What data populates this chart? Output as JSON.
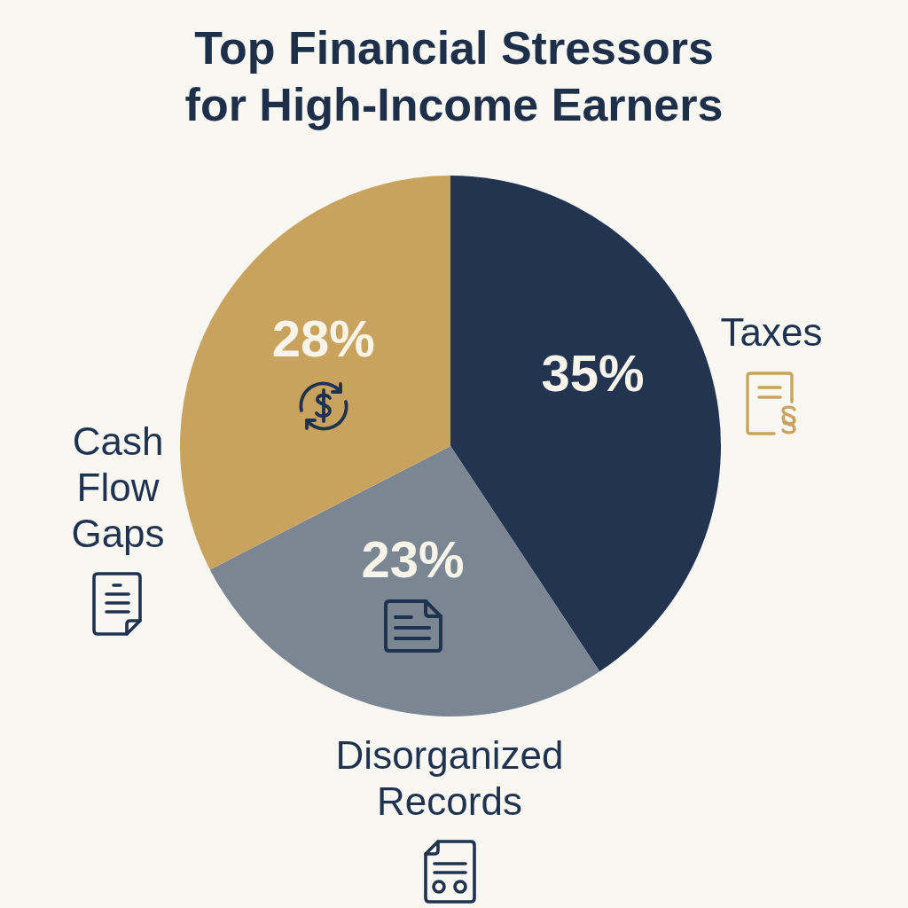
{
  "chart_data": {
    "type": "pie",
    "title": "Top Financial Stressors for High-Income Earners",
    "categories": [
      "Taxes",
      "Disorganized Records",
      "Cash Flow Gaps"
    ],
    "values": [
      35,
      23,
      28
    ],
    "colors": [
      "#22344f",
      "#7b8693",
      "#c9a35e"
    ],
    "value_labels": [
      "35%",
      "23%",
      "28%"
    ]
  }
}
